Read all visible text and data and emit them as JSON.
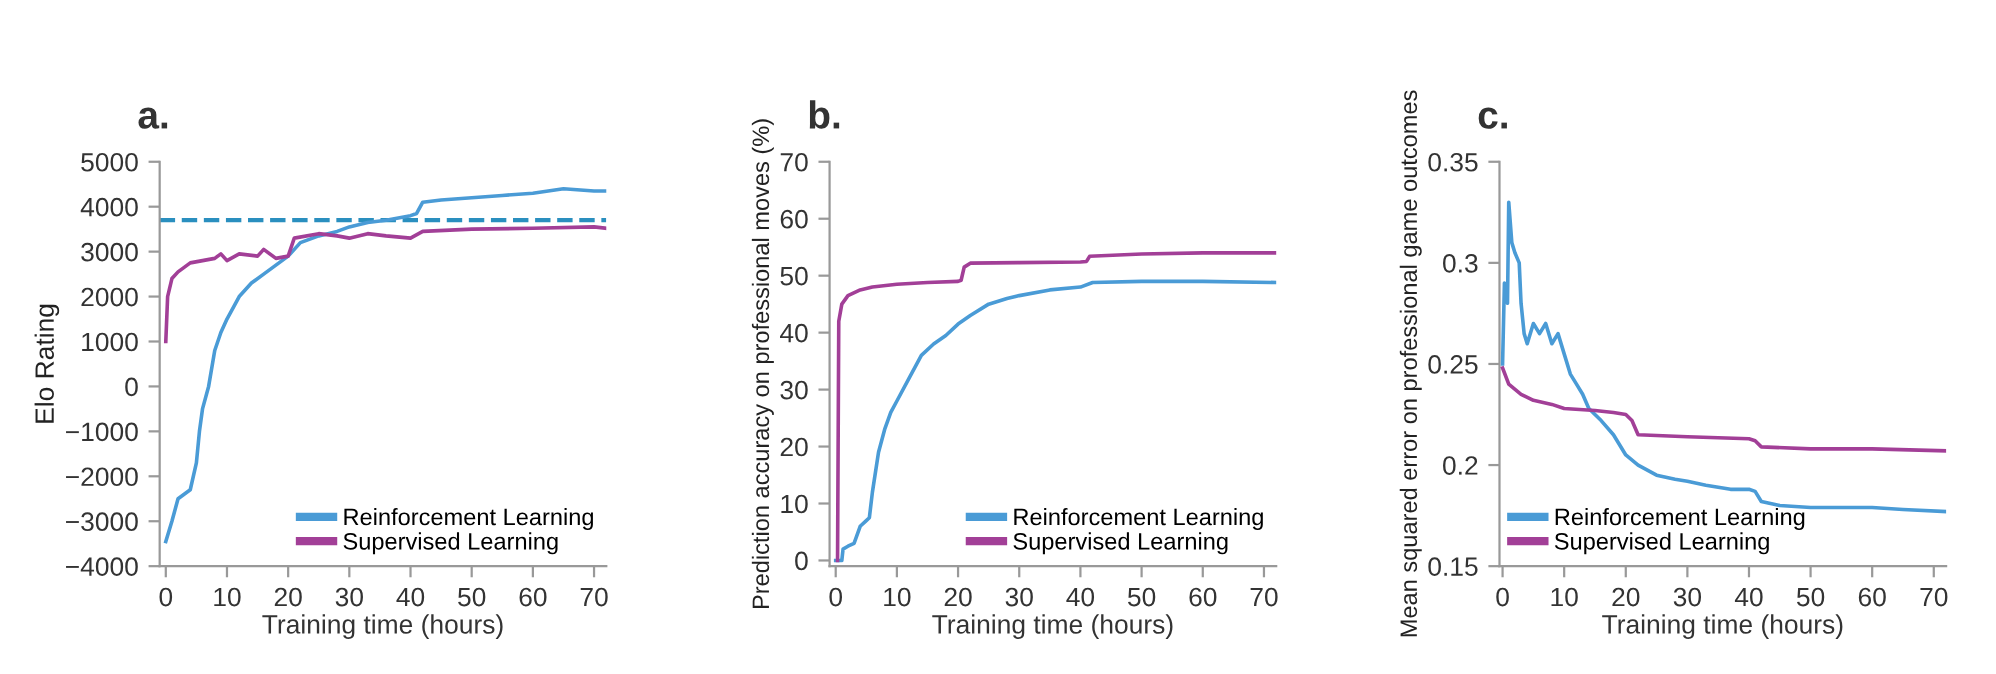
{
  "chart_data": [
    {
      "type": "line",
      "title": "a.",
      "xlabel": "Training time (hours)",
      "ylabel": "Elo Rating",
      "xlim": [
        -1,
        72
      ],
      "xticks": [
        0,
        10,
        20,
        30,
        40,
        50,
        60,
        70
      ],
      "ylim": [
        -4000,
        5000
      ],
      "yticks": [
        {
          "value": -4000,
          "label": "−4000"
        },
        {
          "value": -3000,
          "label": "−3000"
        },
        {
          "value": -2000,
          "label": "−2000"
        },
        {
          "value": -1000,
          "label": "−1000"
        },
        0,
        1000,
        2000,
        3000,
        4000,
        5000
      ],
      "grid": false,
      "legend": "bottom right",
      "series": [
        {
          "name": "Reinforcement Learning",
          "color": "#4a9bd6",
          "x": [
            0,
            1,
            2,
            3,
            4,
            5,
            5.5,
            6,
            7,
            8,
            9,
            10,
            12,
            14,
            16,
            18,
            20,
            22,
            25,
            28,
            30,
            33,
            36,
            40,
            41,
            42,
            45,
            50,
            55,
            60,
            65,
            70,
            72
          ],
          "values": [
            -3450,
            -3000,
            -2500,
            -2400,
            -2300,
            -1700,
            -1000,
            -500,
            0,
            800,
            1200,
            1500,
            2000,
            2300,
            2500,
            2700,
            2900,
            3200,
            3350,
            3450,
            3550,
            3650,
            3700,
            3800,
            3850,
            4100,
            4150,
            4200,
            4250,
            4300,
            4400,
            4350,
            4350
          ]
        },
        {
          "name": "Supervised Learning",
          "color": "#a23f97",
          "x": [
            0,
            0.3,
            1,
            2,
            3,
            4,
            6,
            8,
            9,
            10,
            12,
            15,
            16,
            18,
            20,
            21,
            25,
            28,
            30,
            33,
            36,
            40,
            42,
            50,
            60,
            70,
            72
          ],
          "values": [
            1000,
            2000,
            2400,
            2550,
            2650,
            2750,
            2800,
            2850,
            2950,
            2800,
            2950,
            2900,
            3050,
            2850,
            2900,
            3300,
            3400,
            3350,
            3300,
            3400,
            3350,
            3300,
            3450,
            3500,
            3520,
            3550,
            3520
          ]
        }
      ],
      "ref_lines": [
        {
          "axis": "y",
          "value": 3700,
          "color": "#2a8fbf",
          "line_style": "dashed"
        }
      ]
    },
    {
      "type": "line",
      "title": "b.",
      "xlabel": "Training time (hours)",
      "ylabel": "Prediction accuracy on professional moves (%)",
      "xlim": [
        -1,
        72
      ],
      "xticks": [
        0,
        10,
        20,
        30,
        40,
        50,
        60,
        70
      ],
      "ylim": [
        -1,
        70
      ],
      "yticks": [
        0,
        10,
        20,
        30,
        40,
        50,
        60,
        70
      ],
      "grid": false,
      "legend": "bottom right",
      "series": [
        {
          "name": "Reinforcement Learning",
          "color": "#4a9bd6",
          "x": [
            0,
            1,
            1.2,
            2,
            3,
            4,
            5,
            5.5,
            6,
            7,
            8,
            9,
            10,
            12,
            14,
            16,
            18,
            20,
            22,
            25,
            28,
            30,
            35,
            40,
            42,
            50,
            60,
            72
          ],
          "values": [
            0,
            0,
            2,
            2.5,
            3,
            6,
            7,
            7.5,
            12,
            19,
            23,
            26,
            28,
            32,
            36,
            38,
            39.5,
            41.5,
            43,
            45,
            46,
            46.5,
            47.5,
            48,
            48.8,
            49,
            49,
            48.8
          ]
        },
        {
          "name": "Supervised Learning",
          "color": "#a23f97",
          "x": [
            0.3,
            0.5,
            1,
            2,
            4,
            6,
            10,
            15,
            20,
            20.5,
            21,
            22,
            30,
            40,
            41,
            41.5,
            50,
            60,
            72
          ],
          "values": [
            0,
            42,
            45,
            46.5,
            47.5,
            48,
            48.5,
            48.8,
            49,
            49.2,
            51.5,
            52.2,
            52.3,
            52.4,
            52.5,
            53.4,
            53.8,
            54,
            54
          ]
        }
      ]
    },
    {
      "type": "line",
      "title": "c.",
      "xlabel": "Training time (hours)",
      "ylabel": "Mean squared error on professional game outcomes",
      "xlim": [
        -0.5,
        72
      ],
      "xticks": [
        0,
        10,
        20,
        30,
        40,
        50,
        60,
        70
      ],
      "ylim": [
        0.15,
        0.35
      ],
      "yticks": [
        0.15,
        0.2,
        0.25,
        0.3,
        0.35
      ],
      "grid": false,
      "legend": "bottom left",
      "series": [
        {
          "name": "Reinforcement Learning",
          "color": "#4a9bd6",
          "x": [
            0,
            0.3,
            0.8,
            1,
            1.5,
            2,
            2.7,
            3,
            3.5,
            4,
            5,
            6,
            7,
            8,
            9,
            10,
            11,
            12,
            13,
            14,
            16,
            18,
            20,
            22,
            25,
            28,
            30,
            33,
            37,
            40,
            41,
            42,
            45,
            50,
            60,
            65,
            72
          ],
          "values": [
            0.25,
            0.29,
            0.28,
            0.33,
            0.31,
            0.305,
            0.3,
            0.28,
            0.265,
            0.26,
            0.27,
            0.265,
            0.27,
            0.26,
            0.265,
            0.255,
            0.245,
            0.24,
            0.235,
            0.228,
            0.222,
            0.215,
            0.205,
            0.2,
            0.195,
            0.193,
            0.192,
            0.19,
            0.188,
            0.188,
            0.187,
            0.182,
            0.18,
            0.179,
            0.179,
            0.178,
            0.177
          ]
        },
        {
          "name": "Supervised Learning",
          "color": "#a23f97",
          "x": [
            0,
            1,
            3,
            5,
            8,
            10,
            15,
            18,
            20,
            21,
            22,
            30,
            40,
            41,
            42,
            50,
            60,
            72
          ],
          "values": [
            0.248,
            0.24,
            0.235,
            0.232,
            0.23,
            0.228,
            0.227,
            0.226,
            0.225,
            0.222,
            0.215,
            0.214,
            0.213,
            0.212,
            0.209,
            0.208,
            0.208,
            0.207
          ]
        }
      ]
    }
  ]
}
